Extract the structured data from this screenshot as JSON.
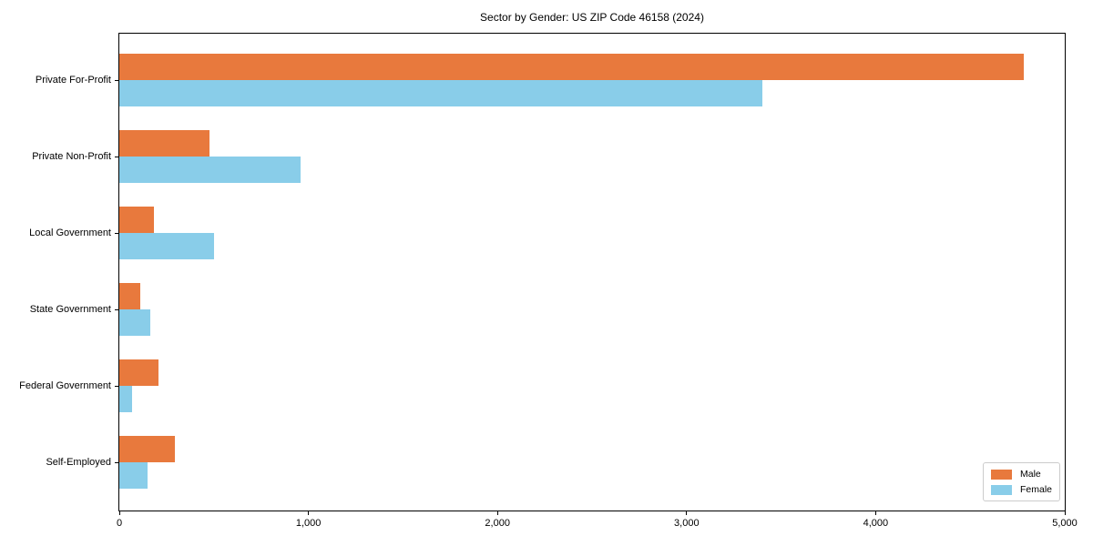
{
  "chart_data": {
    "type": "bar",
    "orientation": "horizontal",
    "title": "Sector by Gender: US ZIP Code 46158 (2024)",
    "xlabel": "",
    "ylabel": "",
    "categories": [
      "Private For-Profit",
      "Private Non-Profit",
      "Local Government",
      "State Government",
      "Federal Government",
      "Self-Employed"
    ],
    "series": [
      {
        "name": "Male",
        "color": "#e8793d",
        "values": [
          4785,
          475,
          185,
          110,
          205,
          295
        ]
      },
      {
        "name": "Female",
        "color": "#89cde9",
        "values": [
          3400,
          960,
          500,
          165,
          65,
          150
        ]
      }
    ],
    "xlim": [
      0,
      5000
    ],
    "xticks": [
      0,
      1000,
      2000,
      3000,
      4000,
      5000
    ],
    "xtick_labels": [
      "0",
      "1,000",
      "2,000",
      "3,000",
      "4,000",
      "5,000"
    ],
    "grid": false,
    "legend": {
      "position": "lower right",
      "entries": [
        "Male",
        "Female"
      ]
    }
  }
}
